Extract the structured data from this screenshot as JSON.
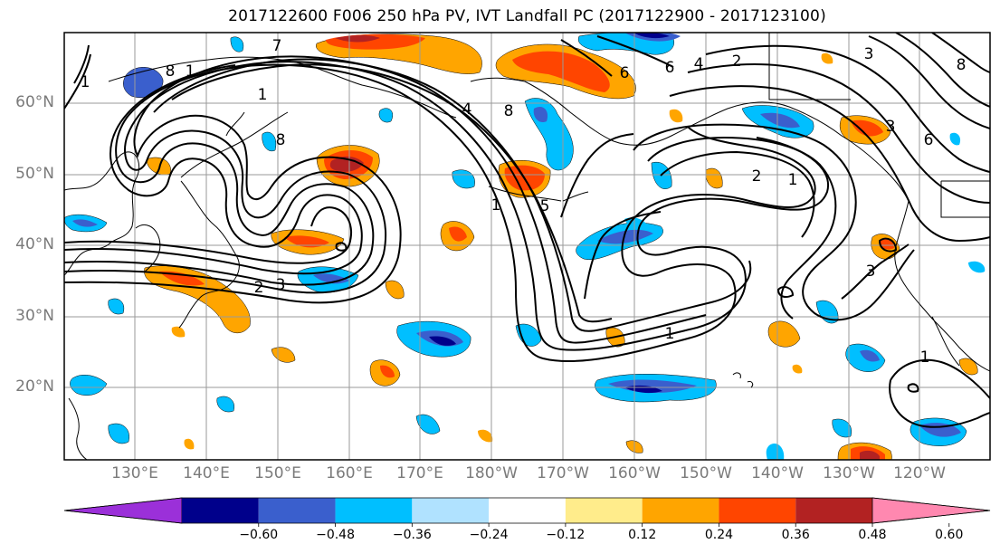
{
  "title": "2017122600 F006 250 hPa PV, IVT Landfall PC (2017122900 - 2017123100)",
  "lat_labels": [
    "60°N",
    "50°N",
    "40°N",
    "30°N",
    "20°N"
  ],
  "lon_labels": [
    "130°E",
    "140°E",
    "150°E",
    "160°E",
    "170°E",
    "180°W",
    "170°W",
    "160°W",
    "150°W",
    "140°W",
    "130°W",
    "120°W"
  ],
  "colorbar": {
    "ticks": [
      "−0.60",
      "−0.48",
      "−0.36",
      "−0.24",
      "−0.12",
      "0.12",
      "0.24",
      "0.36",
      "0.48",
      "0.60"
    ],
    "colors": [
      "#9b30d9",
      "#00008b",
      "#3a5fcd",
      "#00bfff",
      "#b0e2ff",
      "#ffffff",
      "#ffec8b",
      "#ffa500",
      "#ff4500",
      "#b22222",
      "#ff88b0"
    ]
  },
  "shading_colors": {
    "neg_strong": "#00008b",
    "neg_mid": "#3a5fcd",
    "neg_light": "#00bfff",
    "neg_faint": "#b0e2ff",
    "pos_faint": "#ffec8b",
    "pos_light": "#ffa500",
    "pos_mid": "#ff4500",
    "pos_strong": "#b22222"
  },
  "contour_labels": [
    "1",
    "1",
    "1",
    "1",
    "1",
    "1",
    "1",
    "2",
    "2",
    "2",
    "3",
    "3",
    "3",
    "3",
    "4",
    "4",
    "5",
    "6",
    "6",
    "6",
    "7",
    "8",
    "8",
    "8",
    "8"
  ]
}
